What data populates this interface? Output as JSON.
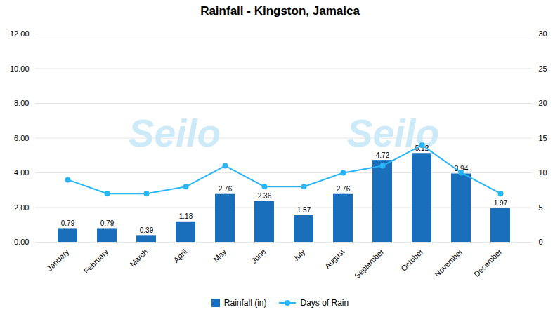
{
  "chart_data": {
    "type": "bar",
    "title": "Rainfall - Kingston, Jamaica",
    "categories": [
      "January",
      "February",
      "March",
      "April",
      "May",
      "June",
      "July",
      "August",
      "September",
      "October",
      "November",
      "December"
    ],
    "series": [
      {
        "name": "Rainfall (in)",
        "type": "bar",
        "color": "#1a6fbb",
        "data_labels": true,
        "values": [
          0.79,
          0.79,
          0.39,
          1.18,
          2.76,
          2.36,
          1.57,
          2.76,
          4.72,
          5.12,
          3.94,
          1.97
        ]
      },
      {
        "name": "Days of Rain",
        "type": "line",
        "color": "#29b6f6",
        "marker": "circle",
        "axis": "y2",
        "values": [
          9,
          7,
          7,
          8,
          11,
          8,
          8,
          10,
          11,
          14,
          10,
          7
        ]
      }
    ],
    "ylim": [
      0,
      12
    ],
    "yticks": [
      {
        "value": 0,
        "label": "0.00"
      },
      {
        "value": 2,
        "label": "2.00"
      },
      {
        "value": 4,
        "label": "4.00"
      },
      {
        "value": 6,
        "label": "6.00"
      },
      {
        "value": 8,
        "label": "8.00"
      },
      {
        "value": 10,
        "label": "10.00"
      },
      {
        "value": 12,
        "label": "12.00"
      }
    ],
    "y2lim": [
      0,
      30
    ],
    "y2ticks": [
      0,
      5,
      10,
      15,
      20,
      25,
      30
    ],
    "grid": true,
    "legend": "bottom",
    "annotations": [
      {
        "text": "Seilo",
        "color": "#c8e8f8"
      },
      {
        "text": "Seilo",
        "color": "#c8e8f8"
      }
    ]
  }
}
